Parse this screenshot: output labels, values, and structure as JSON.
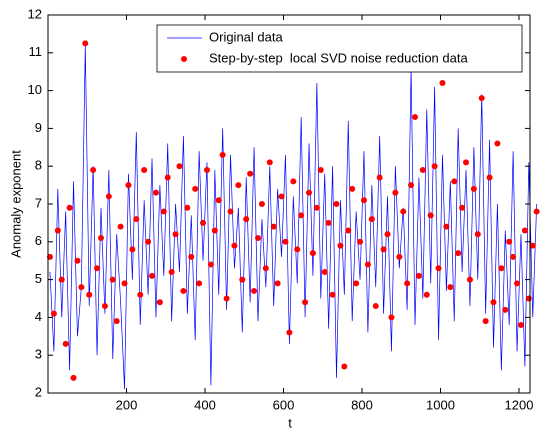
{
  "chart_data": {
    "type": "line_scatter",
    "xlabel": "t",
    "ylabel": "Anomaly exponent",
    "x": [
      5,
      15,
      25,
      35,
      45,
      55,
      65,
      75,
      85,
      95,
      105,
      115,
      125,
      135,
      145,
      155,
      165,
      175,
      185,
      195,
      205,
      215,
      225,
      235,
      245,
      255,
      265,
      275,
      285,
      295,
      305,
      315,
      325,
      335,
      345,
      355,
      365,
      375,
      385,
      395,
      405,
      415,
      425,
      435,
      445,
      455,
      465,
      475,
      485,
      495,
      505,
      515,
      525,
      535,
      545,
      555,
      565,
      575,
      585,
      595,
      605,
      615,
      625,
      635,
      645,
      655,
      665,
      675,
      685,
      695,
      705,
      715,
      725,
      735,
      745,
      755,
      765,
      775,
      785,
      795,
      805,
      815,
      825,
      835,
      845,
      855,
      865,
      875,
      885,
      895,
      905,
      915,
      925,
      935,
      945,
      955,
      965,
      975,
      985,
      995,
      1005,
      1015,
      1025,
      1035,
      1045,
      1055,
      1065,
      1075,
      1085,
      1095,
      1105,
      1115,
      1125,
      1135,
      1145,
      1155,
      1165,
      1175,
      1185,
      1195,
      1205,
      1215,
      1225,
      1235,
      1245
    ],
    "series": [
      {
        "name": "Original data",
        "color": "#0000ff",
        "style": "line",
        "values": [
          5.2,
          3.1,
          7.4,
          4.0,
          6.8,
          2.6,
          7.6,
          3.5,
          4.8,
          11.2,
          4.3,
          8.0,
          3.0,
          6.9,
          4.1,
          7.9,
          2.9,
          6.2,
          4.4,
          2.1,
          7.8,
          5.0,
          8.9,
          3.8,
          7.1,
          4.6,
          8.2,
          4.0,
          7.5,
          5.1,
          8.6,
          3.9,
          7.0,
          5.2,
          8.8,
          4.1,
          6.7,
          3.4,
          8.4,
          5.5,
          8.1,
          2.2,
          7.9,
          4.6,
          9.0,
          4.2,
          8.3,
          5.3,
          6.9,
          3.6,
          7.7,
          4.4,
          8.5,
          3.9,
          6.6,
          4.8,
          8.0,
          4.3,
          7.4,
          5.6,
          8.3,
          3.3,
          7.2,
          4.9,
          9.3,
          4.0,
          8.6,
          5.1,
          10.2,
          4.5,
          7.8,
          3.7,
          8.0,
          2.4,
          7.1,
          4.6,
          9.2,
          3.9,
          6.8,
          5.0,
          8.4,
          3.6,
          7.5,
          4.8,
          8.8,
          4.1,
          7.2,
          3.1,
          8.0,
          5.3,
          6.9,
          4.2,
          10.6,
          3.8,
          7.7,
          4.5,
          9.5,
          4.9,
          10.1,
          3.4,
          8.3,
          4.7,
          7.6,
          3.9,
          9.0,
          5.2,
          7.9,
          4.3,
          8.5,
          5.0,
          9.9,
          4.1,
          8.7,
          3.2,
          7.0,
          2.6,
          6.3,
          3.8,
          8.4,
          3.1,
          6.2,
          2.7,
          8.1,
          4.0,
          7.0
        ]
      },
      {
        "name": "Step-by-step  local SVD noise reduction data",
        "color": "#ff0000",
        "style": "dots",
        "values": [
          5.6,
          4.1,
          6.3,
          5.0,
          3.3,
          6.9,
          2.4,
          5.5,
          4.8,
          11.25,
          4.6,
          7.9,
          5.3,
          6.1,
          4.3,
          7.2,
          5.0,
          3.9,
          6.4,
          4.9,
          7.5,
          5.8,
          6.6,
          4.6,
          7.9,
          6.0,
          5.1,
          7.3,
          4.4,
          6.8,
          7.7,
          5.2,
          6.2,
          8.0,
          4.7,
          6.9,
          5.6,
          7.4,
          4.9,
          6.5,
          7.9,
          5.4,
          6.3,
          7.1,
          8.3,
          4.5,
          6.8,
          5.9,
          7.5,
          5.0,
          6.6,
          7.8,
          4.7,
          6.1,
          7.0,
          5.3,
          8.1,
          6.4,
          4.9,
          7.2,
          6.0,
          3.6,
          7.6,
          5.8,
          6.7,
          4.4,
          7.3,
          5.7,
          6.9,
          7.9,
          5.2,
          6.5,
          4.6,
          7.0,
          5.9,
          2.7,
          6.3,
          7.4,
          4.9,
          6.0,
          7.1,
          5.4,
          6.6,
          4.3,
          7.7,
          5.8,
          6.2,
          4.0,
          7.3,
          5.6,
          6.8,
          4.9,
          7.5,
          9.3,
          5.1,
          7.9,
          4.6,
          6.7,
          8.0,
          5.3,
          10.2,
          6.4,
          4.8,
          7.6,
          5.7,
          6.9,
          8.1,
          5.0,
          7.4,
          6.2,
          9.8,
          3.9,
          7.7,
          4.4,
          8.6,
          5.3,
          4.2,
          6.0,
          5.6,
          4.9,
          3.8,
          6.3,
          4.5,
          5.9,
          6.8
        ]
      }
    ],
    "xlim": [
      0,
      1228
    ],
    "ylim": [
      2,
      12
    ],
    "xticks": [
      200,
      400,
      600,
      800,
      1000,
      1200
    ],
    "yticks": [
      2,
      3,
      4,
      5,
      6,
      7,
      8,
      9,
      10,
      11,
      12
    ],
    "legend": "upper right",
    "grid": false
  }
}
